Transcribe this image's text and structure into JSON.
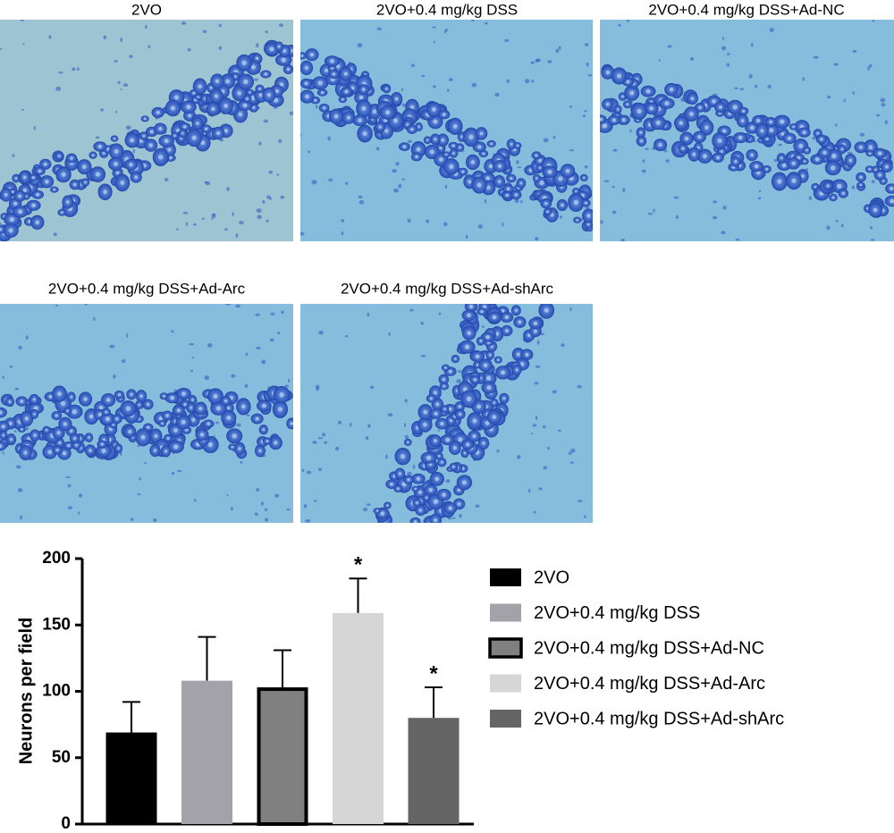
{
  "panels": [
    {
      "label": "2VO"
    },
    {
      "label": "2VO+0.4 mg/kg DSS"
    },
    {
      "label": "2VO+0.4 mg/kg DSS+Ad-NC"
    },
    {
      "label": "2VO+0.4 mg/kg DSS+Ad-Arc"
    },
    {
      "label": "2VO+0.4 mg/kg DSS+Ad-shArc"
    }
  ],
  "chart_data": {
    "type": "bar",
    "ylabel": "Neurons per field",
    "ylim": [
      0,
      200
    ],
    "yticks": [
      0,
      50,
      100,
      150,
      200
    ],
    "series": [
      {
        "name": "2VO",
        "color": "#000000",
        "values": [
          69
        ],
        "errors": [
          23
        ]
      },
      {
        "name": "2VO+0.4 mg/kg DSS",
        "color": "#a2a2a8",
        "values": [
          108
        ],
        "errors": [
          33
        ]
      },
      {
        "name": "2VO+0.4 mg/kg DSS+Ad-NC",
        "color": "#808080",
        "edgecolor": "#000000",
        "values": [
          103
        ],
        "errors": [
          28
        ]
      },
      {
        "name": "2VO+0.4 mg/kg DSS+Ad-Arc",
        "color": "#d6d6d6",
        "values": [
          159
        ],
        "errors": [
          26
        ],
        "annotation": "*"
      },
      {
        "name": "2VO+0.4 mg/kg DSS+Ad-shArc",
        "color": "#656565",
        "values": [
          80
        ],
        "errors": [
          23
        ],
        "annotation": "*"
      }
    ]
  }
}
